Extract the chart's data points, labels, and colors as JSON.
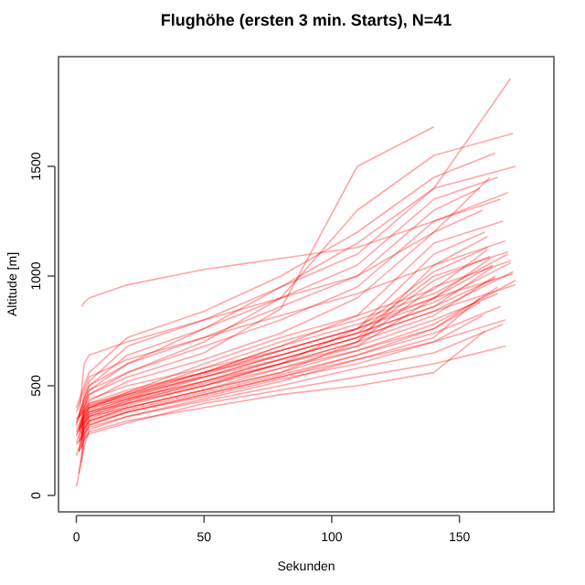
{
  "chart_data": {
    "type": "line",
    "title": "Flughöhe (ersten 3 min. Starts), N=41",
    "xlabel": "Sekunden",
    "ylabel": "Altitude [m]",
    "xlim": [
      -7,
      187
    ],
    "ylim": [
      -75,
      2000
    ],
    "xticks": [
      0,
      50,
      100,
      150
    ],
    "yticks": [
      0,
      500,
      1000,
      1500
    ],
    "grid": false,
    "series": [
      {
        "color": "#ff0000",
        "x": [
          0,
          3,
          5,
          20,
          50,
          80,
          110,
          140,
          158
        ],
        "values": [
          40,
          220,
          300,
          360,
          440,
          520,
          620,
          720,
          900
        ]
      },
      {
        "color": "#ff0000",
        "x": [
          1,
          3,
          5,
          20,
          50,
          80,
          110,
          140,
          165
        ],
        "values": [
          100,
          260,
          320,
          380,
          460,
          540,
          640,
          760,
          950
        ]
      },
      {
        "color": "#ff0000",
        "x": [
          2,
          3,
          5,
          20,
          50,
          80,
          110,
          140,
          172
        ],
        "values": [
          150,
          280,
          340,
          400,
          480,
          560,
          660,
          780,
          980
        ]
      },
      {
        "color": "#ff0000",
        "x": [
          0,
          3,
          5,
          20,
          50,
          80,
          110,
          140,
          164
        ],
        "values": [
          180,
          300,
          350,
          410,
          500,
          600,
          700,
          820,
          1000
        ]
      },
      {
        "color": "#ff0000",
        "x": [
          1,
          3,
          5,
          20,
          50,
          80,
          110,
          140,
          171
        ],
        "values": [
          200,
          320,
          360,
          420,
          520,
          620,
          720,
          840,
          1020
        ]
      },
      {
        "color": "#ff0000",
        "x": [
          2,
          3,
          5,
          20,
          50,
          80,
          110,
          140,
          163
        ],
        "values": [
          220,
          330,
          370,
          430,
          540,
          640,
          740,
          860,
          1040
        ]
      },
      {
        "color": "#ff0000",
        "x": [
          0,
          3,
          5,
          20,
          50,
          80,
          110,
          140,
          170
        ],
        "values": [
          240,
          340,
          380,
          440,
          550,
          660,
          760,
          880,
          1060
        ]
      },
      {
        "color": "#ff0000",
        "x": [
          1,
          3,
          5,
          20,
          50,
          80,
          110,
          140,
          162
        ],
        "values": [
          260,
          350,
          390,
          450,
          560,
          680,
          780,
          900,
          1080
        ]
      },
      {
        "color": "#ff0000",
        "x": [
          2,
          3,
          5,
          20,
          50,
          80,
          110,
          140,
          169
        ],
        "values": [
          280,
          360,
          400,
          460,
          580,
          700,
          800,
          920,
          1100
        ]
      },
      {
        "color": "#ff0000",
        "x": [
          0,
          3,
          5,
          20,
          50,
          80,
          110,
          140,
          161
        ],
        "values": [
          300,
          370,
          410,
          470,
          600,
          720,
          820,
          940,
          1120
        ]
      },
      {
        "color": "#ff0000",
        "x": [
          1,
          3,
          5,
          20,
          50,
          80,
          110,
          140,
          168
        ],
        "values": [
          200,
          250,
          280,
          330,
          420,
          480,
          540,
          600,
          680
        ]
      },
      {
        "color": "#ff0000",
        "x": [
          2,
          3,
          5,
          20,
          50,
          80,
          110,
          140,
          160
        ],
        "values": [
          210,
          260,
          290,
          340,
          400,
          460,
          500,
          560,
          750
        ]
      },
      {
        "color": "#ff0000",
        "x": [
          0,
          3,
          5,
          20,
          50,
          80,
          110,
          140,
          167
        ],
        "values": [
          230,
          280,
          310,
          360,
          430,
          500,
          580,
          650,
          780
        ]
      },
      {
        "color": "#ff0000",
        "x": [
          1,
          3,
          5,
          20,
          50,
          80,
          110,
          140,
          159
        ],
        "values": [
          250,
          300,
          330,
          380,
          450,
          530,
          600,
          700,
          820
        ]
      },
      {
        "color": "#ff0000",
        "x": [
          2,
          3,
          5,
          20,
          50,
          80,
          110,
          140,
          166
        ],
        "values": [
          270,
          310,
          340,
          390,
          470,
          550,
          640,
          740,
          860
        ]
      },
      {
        "color": "#ff0000",
        "x": [
          0,
          3,
          5,
          20,
          50,
          80,
          110,
          140,
          158
        ],
        "values": [
          290,
          330,
          360,
          400,
          480,
          580,
          660,
          760,
          880
        ]
      },
      {
        "color": "#ff0000",
        "x": [
          1,
          3,
          5,
          20,
          50,
          80,
          110,
          140,
          165
        ],
        "values": [
          310,
          350,
          380,
          420,
          500,
          600,
          680,
          800,
          920
        ]
      },
      {
        "color": "#ff0000",
        "x": [
          2,
          3,
          5,
          20,
          50,
          80,
          110,
          140,
          172
        ],
        "values": [
          330,
          370,
          400,
          440,
          520,
          620,
          720,
          840,
          960
        ]
      },
      {
        "color": "#ff0000",
        "x": [
          0,
          3,
          5,
          20,
          50,
          80,
          110,
          140,
          164
        ],
        "values": [
          350,
          380,
          410,
          450,
          540,
          640,
          740,
          860,
          990
        ]
      },
      {
        "color": "#ff0000",
        "x": [
          1,
          3,
          5,
          20,
          50,
          80,
          110,
          140,
          171
        ],
        "values": [
          360,
          390,
          420,
          460,
          560,
          660,
          760,
          900,
          1010
        ]
      },
      {
        "color": "#ff0000",
        "x": [
          2,
          3,
          5,
          20,
          50,
          80,
          110,
          140,
          163
        ],
        "values": [
          250,
          320,
          360,
          420,
          500,
          580,
          680,
          900,
          1050
        ]
      },
      {
        "color": "#ff0000",
        "x": [
          0,
          3,
          5,
          20,
          50,
          80,
          110,
          140,
          170
        ],
        "values": [
          270,
          340,
          380,
          440,
          520,
          600,
          700,
          950,
          1070
        ]
      },
      {
        "color": "#ff0000",
        "x": [
          1,
          3,
          5,
          20,
          50,
          80,
          110,
          140,
          162
        ],
        "values": [
          290,
          360,
          400,
          460,
          540,
          620,
          720,
          980,
          1090
        ]
      },
      {
        "color": "#ff0000",
        "x": [
          2,
          3,
          5,
          20,
          50,
          80,
          110,
          140,
          169
        ],
        "values": [
          310,
          380,
          420,
          480,
          560,
          640,
          740,
          1000,
          1110
        ]
      },
      {
        "color": "#ff0000",
        "x": [
          0,
          3,
          5,
          20,
          50,
          80,
          110,
          140,
          161
        ],
        "values": [
          330,
          400,
          440,
          500,
          580,
          660,
          760,
          1020,
          1130
        ]
      },
      {
        "color": "#ff0000",
        "x": [
          1,
          3,
          5,
          20,
          50,
          80,
          110,
          140,
          168
        ],
        "values": [
          240,
          300,
          340,
          400,
          480,
          560,
          700,
          1050,
          1160
        ]
      },
      {
        "color": "#ff0000",
        "x": [
          2,
          3,
          5,
          20,
          50,
          80,
          110,
          140,
          160
        ],
        "values": [
          260,
          330,
          370,
          430,
          510,
          600,
          760,
          1100,
          1200
        ]
      },
      {
        "color": "#ff0000",
        "x": [
          0,
          3,
          5,
          20,
          50,
          80,
          110,
          140,
          167
        ],
        "values": [
          280,
          350,
          400,
          470,
          560,
          680,
          820,
          1150,
          1250
        ]
      },
      {
        "color": "#ff0000",
        "x": [
          1,
          3,
          5,
          20,
          50,
          80,
          110,
          140,
          159
        ],
        "values": [
          300,
          380,
          430,
          520,
          620,
          740,
          900,
          1200,
          1300
        ]
      },
      {
        "color": "#ff0000",
        "x": [
          2,
          3,
          5,
          20,
          50,
          80,
          110,
          140,
          166
        ],
        "values": [
          320,
          400,
          460,
          560,
          680,
          800,
          950,
          1250,
          1350
        ]
      },
      {
        "color": "#ff0000",
        "x": [
          0,
          3,
          5,
          20,
          50,
          80,
          110,
          140,
          158
        ],
        "values": [
          340,
          420,
          480,
          600,
          720,
          860,
          1000,
          1300,
          1400
        ]
      },
      {
        "color": "#ff0000",
        "x": [
          1,
          3,
          5,
          20,
          50,
          80,
          110,
          140,
          165
        ],
        "values": [
          360,
          440,
          500,
          640,
          760,
          900,
          1050,
          1350,
          1450
        ]
      },
      {
        "color": "#ff0000",
        "x": [
          2,
          3,
          5,
          20,
          50,
          80,
          110,
          140,
          172
        ],
        "values": [
          380,
          460,
          520,
          680,
          800,
          950,
          1100,
          1400,
          1500
        ]
      },
      {
        "color": "#ff0000",
        "x": [
          0,
          3,
          5,
          20,
          50,
          80,
          110,
          140,
          164
        ],
        "values": [
          400,
          500,
          560,
          720,
          840,
          1000,
          1200,
          1450,
          1560
        ]
      },
      {
        "color": "#ff0000",
        "x": [
          1,
          3,
          5,
          20,
          50,
          80,
          110,
          140,
          171
        ],
        "values": [
          300,
          420,
          480,
          560,
          700,
          900,
          1300,
          1550,
          1650
        ]
      },
      {
        "color": "#ff0000",
        "x": [
          2,
          3,
          5,
          20,
          50,
          80,
          110,
          140
        ],
        "values": [
          280,
          400,
          460,
          540,
          650,
          850,
          1500,
          1680
        ]
      },
      {
        "color": "#ff0000",
        "x": [
          0,
          3,
          5,
          20,
          50,
          80,
          110,
          140,
          170
        ],
        "values": [
          320,
          440,
          500,
          600,
          760,
          950,
          1150,
          1400,
          1900
        ]
      },
      {
        "color": "#ff0000",
        "x": [
          1,
          3,
          5,
          20,
          50,
          80,
          110,
          140,
          162
        ],
        "values": [
          350,
          600,
          640,
          700,
          800,
          900,
          1000,
          1200,
          1450
        ]
      },
      {
        "color": "#ff0000",
        "x": [
          2,
          3,
          5,
          20,
          50,
          80,
          110,
          140,
          169
        ],
        "values": [
          860,
          880,
          900,
          960,
          1030,
          1080,
          1130,
          1250,
          1380
        ]
      },
      {
        "color": "#ff0000",
        "x": [
          0,
          3,
          5,
          20,
          50,
          80,
          110,
          140,
          161
        ],
        "values": [
          380,
          480,
          540,
          620,
          720,
          820,
          920,
          1050,
          1180
        ]
      },
      {
        "color": "#ff0000",
        "x": [
          1,
          3,
          5,
          20,
          50,
          80,
          110,
          140,
          168
        ],
        "values": [
          200,
          280,
          320,
          380,
          460,
          540,
          620,
          700,
          800
        ]
      }
    ]
  }
}
